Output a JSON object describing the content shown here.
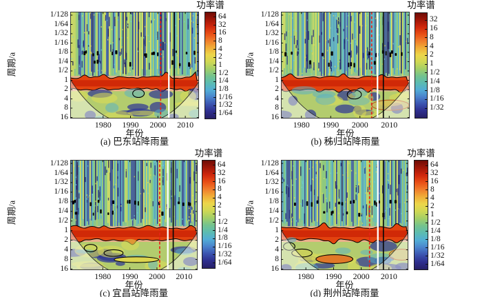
{
  "chart_data": {
    "type": "heatmap",
    "subtype": "wavelet-power-spectrum",
    "shared": {
      "ylabel": "周期/a",
      "xlabel": "年份",
      "colorbar_label": "功率谱",
      "y_ticks": [
        "1/128",
        "1/64",
        "1/32",
        "1/16",
        "1/8",
        "1/4",
        "1/2",
        "1",
        "2",
        "4",
        "8",
        "16"
      ],
      "x_ticks": [
        "1980",
        "1990",
        "2000",
        "2010"
      ],
      "y_scale": "log2 period, 1/128 a (top) to 16 a (bottom)",
      "dominant_high_power_period_a": 1,
      "grid": false,
      "legend": "none"
    },
    "panels": [
      {
        "id": "a",
        "caption": "(a) 巴东站降雨量",
        "station": "巴东站",
        "x_range": [
          1968,
          2015
        ],
        "colorbar_ticks": [
          "64",
          "32",
          "16",
          "8",
          "4",
          "2",
          "1",
          "1/2",
          "1/4",
          "1/8",
          "1/16",
          "1/32",
          "1/64"
        ],
        "markers": {
          "red_dashed_year": 2001,
          "white_line_year": 2004,
          "black_line_year": 2006
        },
        "significant_regions": [
          {
            "x": 0.53,
            "y": 0.765,
            "rx": 0.045,
            "ry": 0.038,
            "stroke": "#000000",
            "fill": "none"
          }
        ]
      },
      {
        "id": "b",
        "caption": "(b) 秭归站降雨量",
        "station": "秭归站",
        "x_range": [
          1973,
          2017
        ],
        "colorbar_ticks": [
          "32",
          "16",
          "8",
          "4",
          "2",
          "1",
          "1/2",
          "1/4",
          "1/8",
          "1/16",
          "1/32"
        ],
        "markers": {
          "red_dashed_year": 2004,
          "white_line_year": 2006,
          "black_line_year": 2008
        },
        "significant_regions": [
          {
            "x": 0.57,
            "y": 0.775,
            "rx": 0.055,
            "ry": 0.042,
            "stroke": "#000000",
            "fill": "none"
          },
          {
            "x": 0.85,
            "y": 0.875,
            "rx": 0.145,
            "ry": 0.048,
            "stroke": "#b85a1e",
            "fill": "rgba(235,150,80,0.30)"
          }
        ]
      },
      {
        "id": "c",
        "caption": "(c) 宜昌站降雨量",
        "station": "宜昌站",
        "x_range": [
          1968,
          2015
        ],
        "colorbar_ticks": [
          "64",
          "32",
          "16",
          "8",
          "4",
          "2",
          "1",
          "1/2",
          "1/4",
          "1/8",
          "1/16",
          "1/32",
          "1/64"
        ],
        "markers": {
          "red_dashed_year": 2001,
          "white_line_year": 2004,
          "black_line_year": 2006
        },
        "significant_regions": [
          {
            "x": 0.16,
            "y": 0.8,
            "rx": 0.05,
            "ry": 0.033,
            "stroke": "#000000",
            "fill": "none"
          },
          {
            "x": 0.34,
            "y": 0.845,
            "rx": 0.075,
            "ry": 0.03,
            "stroke": "#000000",
            "fill": "none"
          },
          {
            "x": 0.52,
            "y": 0.905,
            "rx": 0.175,
            "ry": 0.026,
            "stroke": "#000000",
            "fill": "#ddd44e"
          }
        ]
      },
      {
        "id": "d",
        "caption": "(d) 荆州站降雨量",
        "station": "荆州站",
        "x_range": [
          1971,
          2017
        ],
        "colorbar_ticks": [
          "64",
          "32",
          "16",
          "8",
          "4",
          "2",
          "1",
          "1/2",
          "1/4",
          "1/8",
          "1/16",
          "1/32",
          "1/64"
        ],
        "markers": {
          "red_dashed_year": 2003,
          "white_line_year": 2006,
          "black_line_year": 2008
        },
        "significant_regions": [
          {
            "x": 0.065,
            "y": 0.785,
            "rx": 0.045,
            "ry": 0.035,
            "stroke": "#000000",
            "fill": "none"
          },
          {
            "x": 0.165,
            "y": 0.845,
            "rx": 0.08,
            "ry": 0.036,
            "stroke": "#000000",
            "fill": "#c9d05c"
          },
          {
            "x": 0.42,
            "y": 0.9,
            "rx": 0.145,
            "ry": 0.04,
            "stroke": "#000000",
            "fill": "#e07828"
          },
          {
            "x": 0.95,
            "y": 0.86,
            "rx": 0.1,
            "ry": 0.05,
            "stroke": "#b85a1e",
            "fill": "rgba(235,150,80,0.30)"
          }
        ]
      }
    ],
    "colors": {
      "high_power_band": "#e2430f",
      "band_core": "#cd2506",
      "pale_band_edge": "#eab08b",
      "marker_red_dashed": "#e82418",
      "marker_white": "#ffffff",
      "marker_black": "#0a0a0a",
      "coi_line": "#222222",
      "significance_contour": "#000000",
      "jet_gradient": [
        "#6e0c06",
        "#a01708",
        "#cf270c",
        "#e84e16",
        "#f07d2c",
        "#f0ae38",
        "#ecd64a",
        "#cfd854",
        "#a3cf68",
        "#74c38e",
        "#5cbcb2",
        "#52add6",
        "#4a82cc",
        "#3b53af",
        "#2e2e8e",
        "#272066"
      ]
    }
  }
}
